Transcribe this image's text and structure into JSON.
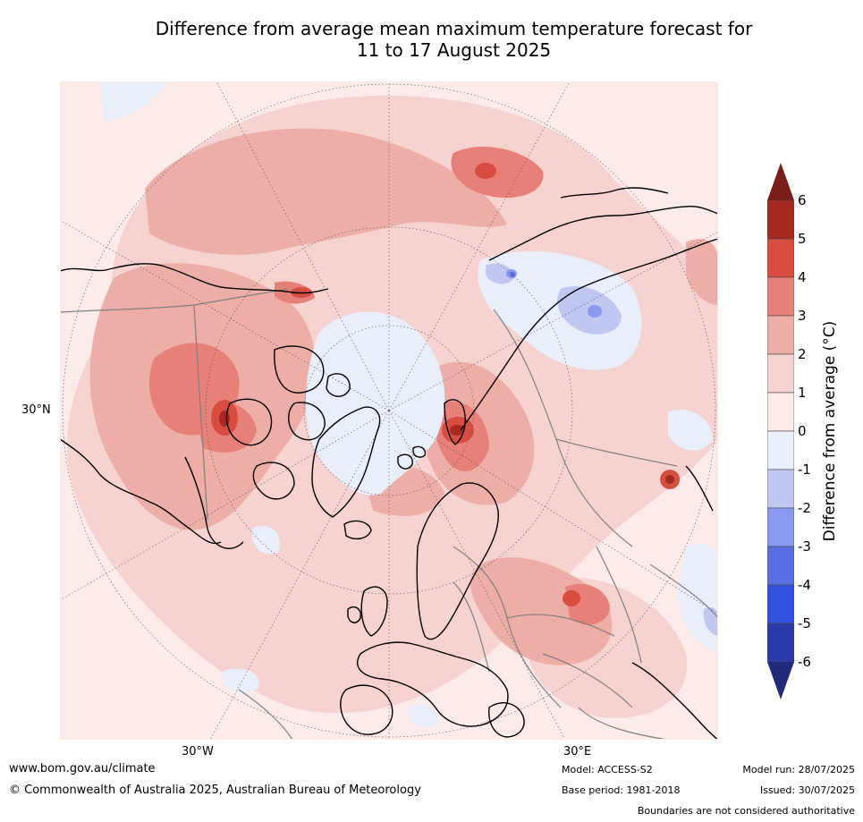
{
  "title_line1": "Difference from average mean maximum temperature forecast for",
  "title_line2": "11 to 17 August 2025",
  "grid_labels": {
    "lat_30n": "30°N",
    "lon_30w": "30°W",
    "lon_30e": "30°E"
  },
  "colorbar": {
    "label": "Difference from average (°C)",
    "ticks": [
      "6",
      "5",
      "4",
      "3",
      "2",
      "1",
      "0",
      "-1",
      "-2",
      "-3",
      "-4",
      "-5",
      "-6"
    ],
    "colors_top_to_bottom": [
      "#a52a22",
      "#d94c40",
      "#e68078",
      "#eeaea8",
      "#f6d3d0",
      "#fcebe8",
      "#e9eefb",
      "#c0c8f2",
      "#8a9af0",
      "#5a6ee4",
      "#3350de",
      "#2a3aaa"
    ],
    "extend_high_color": "#7a1c18",
    "extend_low_color": "#1f2a7a"
  },
  "footer": {
    "website": "www.bom.gov.au/climate",
    "copyright": "© Commonwealth of Australia 2025, Australian Bureau of Meteorology",
    "model": "Model: ACCESS-S2",
    "base_period": "Base period: 1981-2018",
    "model_run": "Model run: 28/07/2025",
    "issued": "Issued: 30/07/2025",
    "disclaimer": "Boundaries are not considered authoritative"
  }
}
